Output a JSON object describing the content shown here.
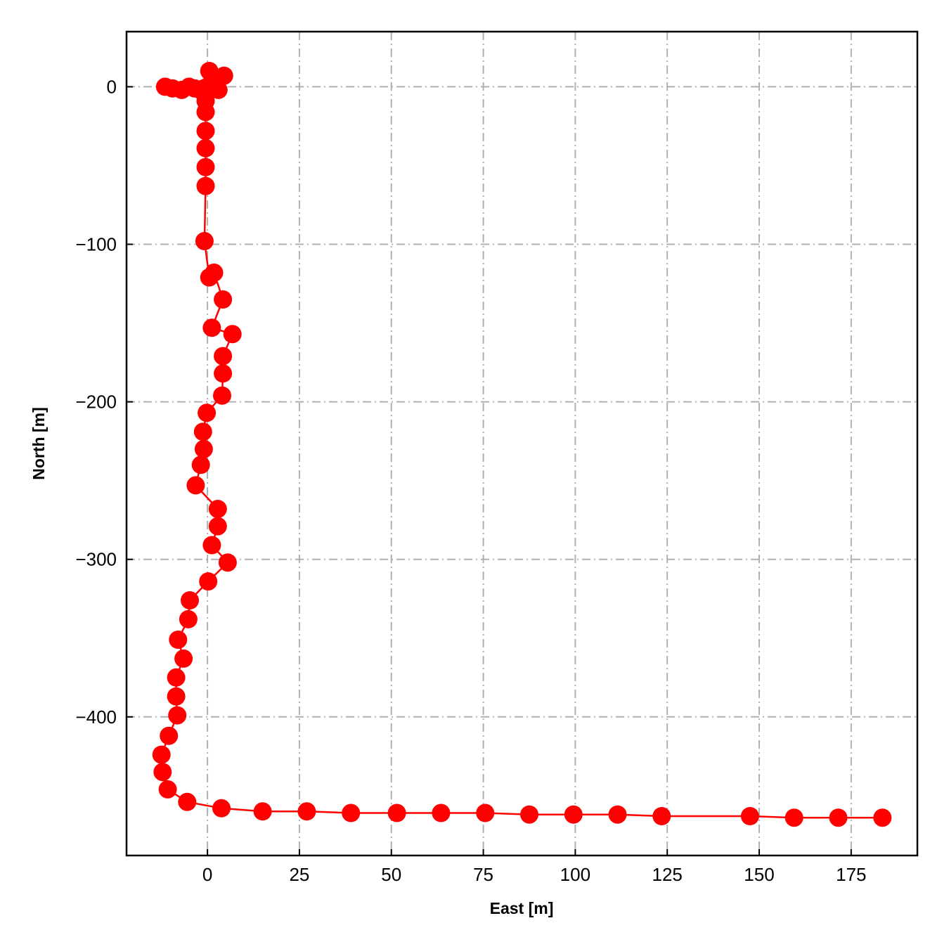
{
  "chart_data": {
    "type": "line",
    "xlabel": "East [m]",
    "ylabel": "North [m]",
    "xlim": [
      -22,
      193
    ],
    "ylim": [
      -488,
      35
    ],
    "grid": true,
    "marker": "circle",
    "colors": {
      "series": "#ff0000",
      "grid": "#b0b0b0",
      "axes": "#000000"
    },
    "xticks": [
      0,
      25,
      50,
      75,
      100,
      125,
      150,
      175
    ],
    "xtick_labels": [
      "0",
      "25",
      "50",
      "75",
      "100",
      "125",
      "150",
      "175"
    ],
    "yticks": [
      0,
      -100,
      -200,
      -300,
      -400
    ],
    "ytick_labels": [
      "0",
      "−100",
      "−200",
      "−300",
      "−400"
    ],
    "series": [
      {
        "x": [
          -11.5,
          -9.5,
          -7.0,
          -5.0,
          -3.5,
          -2.0,
          -1.0,
          0.5,
          1.5,
          0.0,
          4.5,
          2.5,
          3.0,
          0.0,
          -0.5,
          -0.5,
          -0.5,
          -0.5,
          -0.5,
          -0.5,
          -0.8,
          0.5,
          1.8,
          4.2,
          1.2,
          6.8,
          4.2,
          4.2,
          4.0,
          -0.2,
          -1.2,
          -1.0,
          -1.8,
          -3.2,
          2.8,
          2.8,
          1.2,
          5.5,
          0.2,
          -4.8,
          -5.2,
          -8.0,
          -6.5,
          -8.5,
          -8.5,
          -8.2,
          -10.5,
          -12.5,
          -12.2,
          -10.8,
          -5.5,
          3.8,
          15.0,
          27.0,
          39.0,
          51.5,
          63.5,
          75.5,
          87.5,
          99.5,
          111.5,
          123.5,
          147.5,
          159.5,
          171.5,
          183.5
        ],
        "y": [
          0,
          -1,
          -2,
          0,
          -1,
          -2,
          -1,
          10,
          4,
          0,
          7,
          -1,
          -2,
          -3,
          -9,
          -16,
          -28,
          -39,
          -51,
          -63,
          -98,
          -121,
          -118,
          -135,
          -153,
          -157,
          -171,
          -182,
          -196,
          -207,
          -219,
          -230,
          -240,
          -253,
          -268,
          -279,
          -291,
          -302,
          -314,
          -326,
          -338,
          -351,
          -363,
          -375,
          -387,
          -399,
          -412,
          -424,
          -435,
          -446,
          -454,
          -458,
          -460,
          -460,
          -461,
          -461,
          -461,
          -461,
          -462,
          -462,
          -462,
          -463,
          -463,
          -464,
          -464,
          -464
        ]
      }
    ]
  }
}
